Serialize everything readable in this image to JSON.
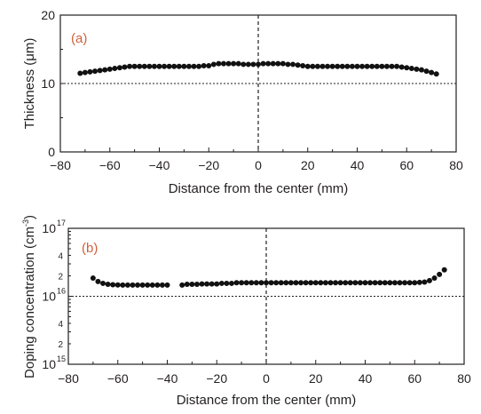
{
  "chart_data": [
    {
      "panel": "(a)",
      "type": "scatter",
      "xlabel": "Distance from the center (mm)",
      "ylabel": "Thickness (μm)",
      "xlim": [
        -80,
        80
      ],
      "ylim": [
        0,
        20
      ],
      "x_ticks": [
        "−80",
        "−60",
        "−40",
        "−20",
        "0",
        "20",
        "40",
        "60",
        "80"
      ],
      "y_ticks": [
        "0",
        "10",
        "20"
      ],
      "reference_lines": [
        {
          "axis": "y",
          "value": 10,
          "style": "dotted"
        },
        {
          "axis": "x",
          "value": 0,
          "style": "dashed"
        }
      ],
      "grid": false,
      "legend": "none",
      "x": [
        -72,
        -70,
        -68,
        -66,
        -64,
        -62,
        -60,
        -58,
        -56,
        -54,
        -52,
        -50,
        -48,
        -46,
        -44,
        -42,
        -40,
        -38,
        -36,
        -34,
        -32,
        -30,
        -28,
        -26,
        -24,
        -22,
        -20,
        -18,
        -16,
        -14,
        -12,
        -10,
        -8,
        -6,
        -4,
        -2,
        0,
        2,
        4,
        6,
        8,
        10,
        12,
        14,
        16,
        18,
        20,
        22,
        24,
        26,
        28,
        30,
        32,
        34,
        36,
        38,
        40,
        42,
        44,
        46,
        48,
        50,
        52,
        54,
        56,
        58,
        60,
        62,
        64,
        66,
        68,
        70,
        72
      ],
      "y": [
        11.5,
        11.6,
        11.7,
        11.8,
        11.9,
        12.0,
        12.1,
        12.2,
        12.3,
        12.4,
        12.5,
        12.5,
        12.5,
        12.5,
        12.5,
        12.5,
        12.5,
        12.5,
        12.5,
        12.5,
        12.5,
        12.5,
        12.5,
        12.5,
        12.5,
        12.6,
        12.6,
        12.8,
        12.9,
        12.9,
        12.9,
        12.9,
        12.9,
        12.8,
        12.8,
        12.8,
        12.8,
        12.9,
        12.9,
        12.9,
        12.9,
        12.9,
        12.8,
        12.8,
        12.7,
        12.6,
        12.5,
        12.5,
        12.5,
        12.5,
        12.5,
        12.5,
        12.5,
        12.5,
        12.5,
        12.5,
        12.5,
        12.5,
        12.5,
        12.5,
        12.5,
        12.5,
        12.5,
        12.5,
        12.5,
        12.4,
        12.3,
        12.2,
        12.1,
        12.0,
        11.8,
        11.6,
        11.4
      ]
    },
    {
      "panel": "(b)",
      "type": "scatter",
      "xlabel": "Distance from the center (mm)",
      "ylabel": "Doping concentration (cm",
      "ylabel_sup": "-3",
      "ylabel_end": ")",
      "xlim": [
        -80,
        80
      ],
      "ylim": [
        1000000000000000.0,
        1e+17
      ],
      "yscale": "log",
      "x_ticks": [
        "−80",
        "−60",
        "−40",
        "−20",
        "0",
        "20",
        "40",
        "60",
        "80"
      ],
      "y_major_ticks": [
        {
          "base": "10",
          "exp": "15",
          "value": 1000000000000000.0
        },
        {
          "base": "10",
          "exp": "16",
          "value": 1e+16
        },
        {
          "base": "10",
          "exp": "17",
          "value": 1e+17
        }
      ],
      "y_minor_labels": [
        {
          "label": "2",
          "value": 2000000000000000.0
        },
        {
          "label": "4",
          "value": 4000000000000000.0
        },
        {
          "label": "2",
          "value": 2e+16
        },
        {
          "label": "4",
          "value": 4e+16
        }
      ],
      "reference_lines": [
        {
          "axis": "y",
          "value": 1e+16,
          "style": "dotted"
        },
        {
          "axis": "x",
          "value": 0,
          "style": "dashed"
        }
      ],
      "grid": false,
      "legend": "none",
      "x": [
        -70,
        -68,
        -66,
        -64,
        -62,
        -60,
        -58,
        -56,
        -54,
        -52,
        -50,
        -48,
        -46,
        -44,
        -42,
        -40,
        -34,
        -32,
        -30,
        -28,
        -26,
        -24,
        -22,
        -20,
        -18,
        -16,
        -14,
        -12,
        -10,
        -8,
        -6,
        -4,
        -2,
        0,
        2,
        4,
        6,
        8,
        10,
        12,
        14,
        16,
        18,
        20,
        22,
        24,
        26,
        28,
        30,
        32,
        34,
        36,
        38,
        40,
        42,
        44,
        46,
        48,
        50,
        52,
        54,
        56,
        58,
        60,
        62,
        64,
        66,
        68,
        70,
        72
      ],
      "y": [
        1.85e+16,
        1.65e+16,
        1.55e+16,
        1.5e+16,
        1.48e+16,
        1.47e+16,
        1.46e+16,
        1.46e+16,
        1.46e+16,
        1.46e+16,
        1.46e+16,
        1.46e+16,
        1.46e+16,
        1.46e+16,
        1.46e+16,
        1.46e+16,
        1.46e+16,
        1.5e+16,
        1.5e+16,
        1.5e+16,
        1.52e+16,
        1.52e+16,
        1.52e+16,
        1.52e+16,
        1.55e+16,
        1.55e+16,
        1.55e+16,
        1.58e+16,
        1.58e+16,
        1.58e+16,
        1.58e+16,
        1.58e+16,
        1.58e+16,
        1.58e+16,
        1.58e+16,
        1.58e+16,
        1.58e+16,
        1.58e+16,
        1.58e+16,
        1.58e+16,
        1.58e+16,
        1.58e+16,
        1.58e+16,
        1.58e+16,
        1.58e+16,
        1.58e+16,
        1.58e+16,
        1.58e+16,
        1.58e+16,
        1.58e+16,
        1.58e+16,
        1.58e+16,
        1.58e+16,
        1.58e+16,
        1.58e+16,
        1.58e+16,
        1.58e+16,
        1.58e+16,
        1.58e+16,
        1.58e+16,
        1.58e+16,
        1.58e+16,
        1.58e+16,
        1.58e+16,
        1.6e+16,
        1.62e+16,
        1.7e+16,
        1.85e+16,
        2.1e+16,
        2.45e+16
      ]
    }
  ]
}
